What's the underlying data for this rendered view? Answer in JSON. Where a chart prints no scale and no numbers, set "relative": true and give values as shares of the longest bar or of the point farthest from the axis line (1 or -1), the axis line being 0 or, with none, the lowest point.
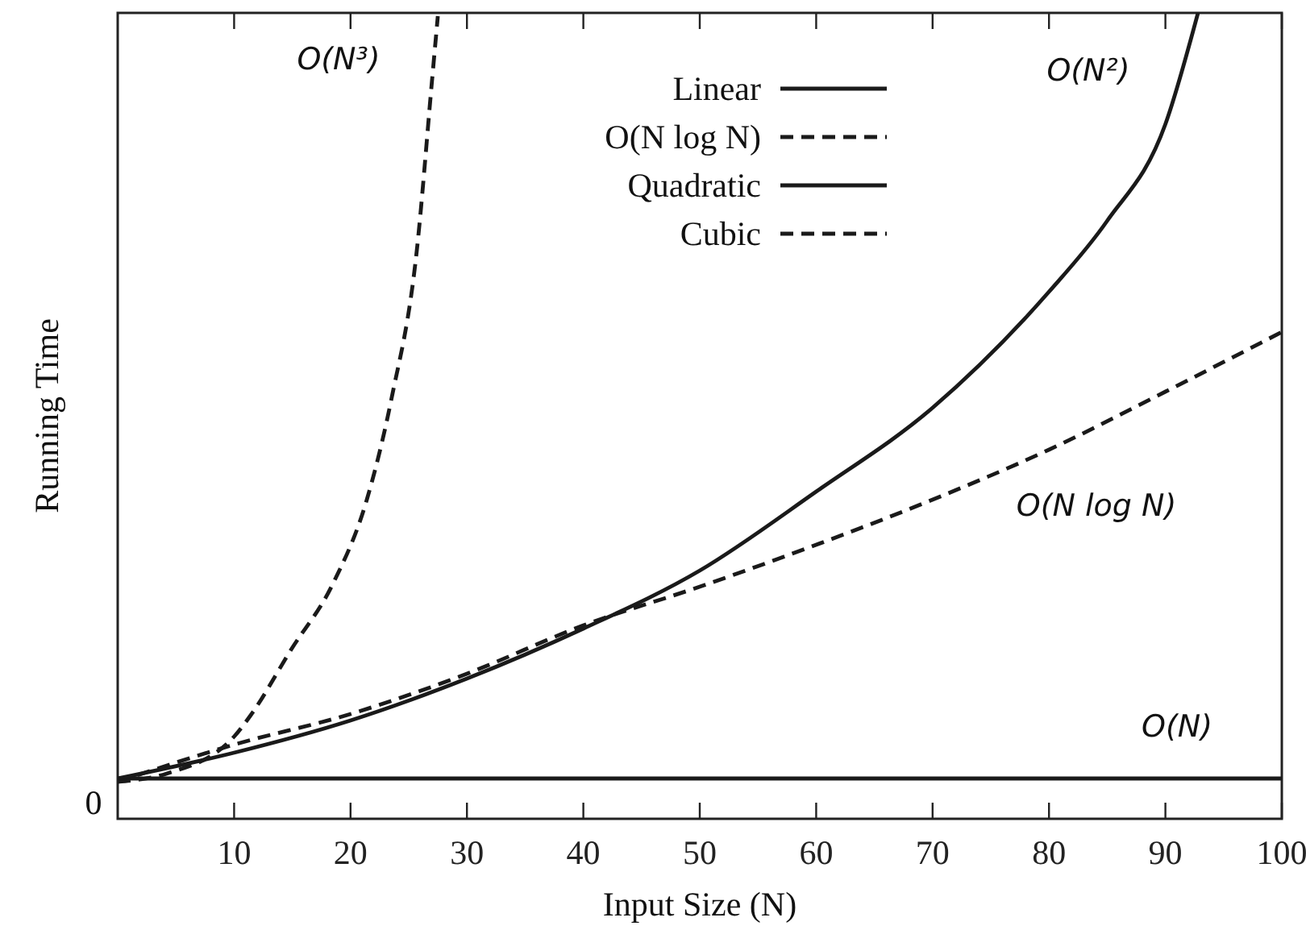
{
  "chart_data": {
    "type": "line",
    "relative": true,
    "xlabel": "Input Size (N)",
    "ylabel": "Running Time",
    "xlim": [
      0,
      100
    ],
    "xticks": [
      10,
      20,
      30,
      40,
      50,
      60,
      70,
      80,
      90,
      100
    ],
    "legend": "top",
    "marker": "none",
    "series": [
      {
        "name": "Linear",
        "color": "#1a1a1a",
        "line_style": "solid",
        "x": [
          0,
          25,
          50,
          75,
          100
        ],
        "values": [
          0.05,
          0.05,
          0.05,
          0.05,
          0.05
        ]
      },
      {
        "name": "O(N log N)",
        "color": "#1a1a1a",
        "line_style": "dashed",
        "x": [
          0,
          10,
          20,
          30,
          40,
          50,
          60,
          70,
          80,
          90,
          100
        ],
        "values": [
          0.046,
          0.092,
          0.13,
          0.18,
          0.24,
          0.288,
          0.34,
          0.396,
          0.458,
          0.53,
          0.604
        ]
      },
      {
        "name": "Quadratic",
        "color": "#1a1a1a",
        "line_style": "solid",
        "x": [
          0,
          10,
          20,
          30,
          40,
          50,
          60,
          70,
          80,
          85,
          90,
          92.8
        ],
        "values": [
          0.05,
          0.082,
          0.122,
          0.174,
          0.236,
          0.308,
          0.406,
          0.51,
          0.654,
          0.742,
          0.862,
          1
        ]
      },
      {
        "name": "Cubic",
        "color": "#1a1a1a",
        "line_style": "dashed",
        "x": [
          0,
          4.2,
          10,
          11.4,
          14.9,
          18.5,
          21.4,
          23.5,
          25.7,
          27,
          27.5
        ],
        "values": [
          0.046,
          0.056,
          0.102,
          0.128,
          0.21,
          0.292,
          0.396,
          0.52,
          0.706,
          0.916,
          0.996
        ]
      }
    ],
    "annotations": [
      "O(N³)",
      "O(N²)",
      "O(N log N)",
      "O(N)",
      "0"
    ]
  }
}
